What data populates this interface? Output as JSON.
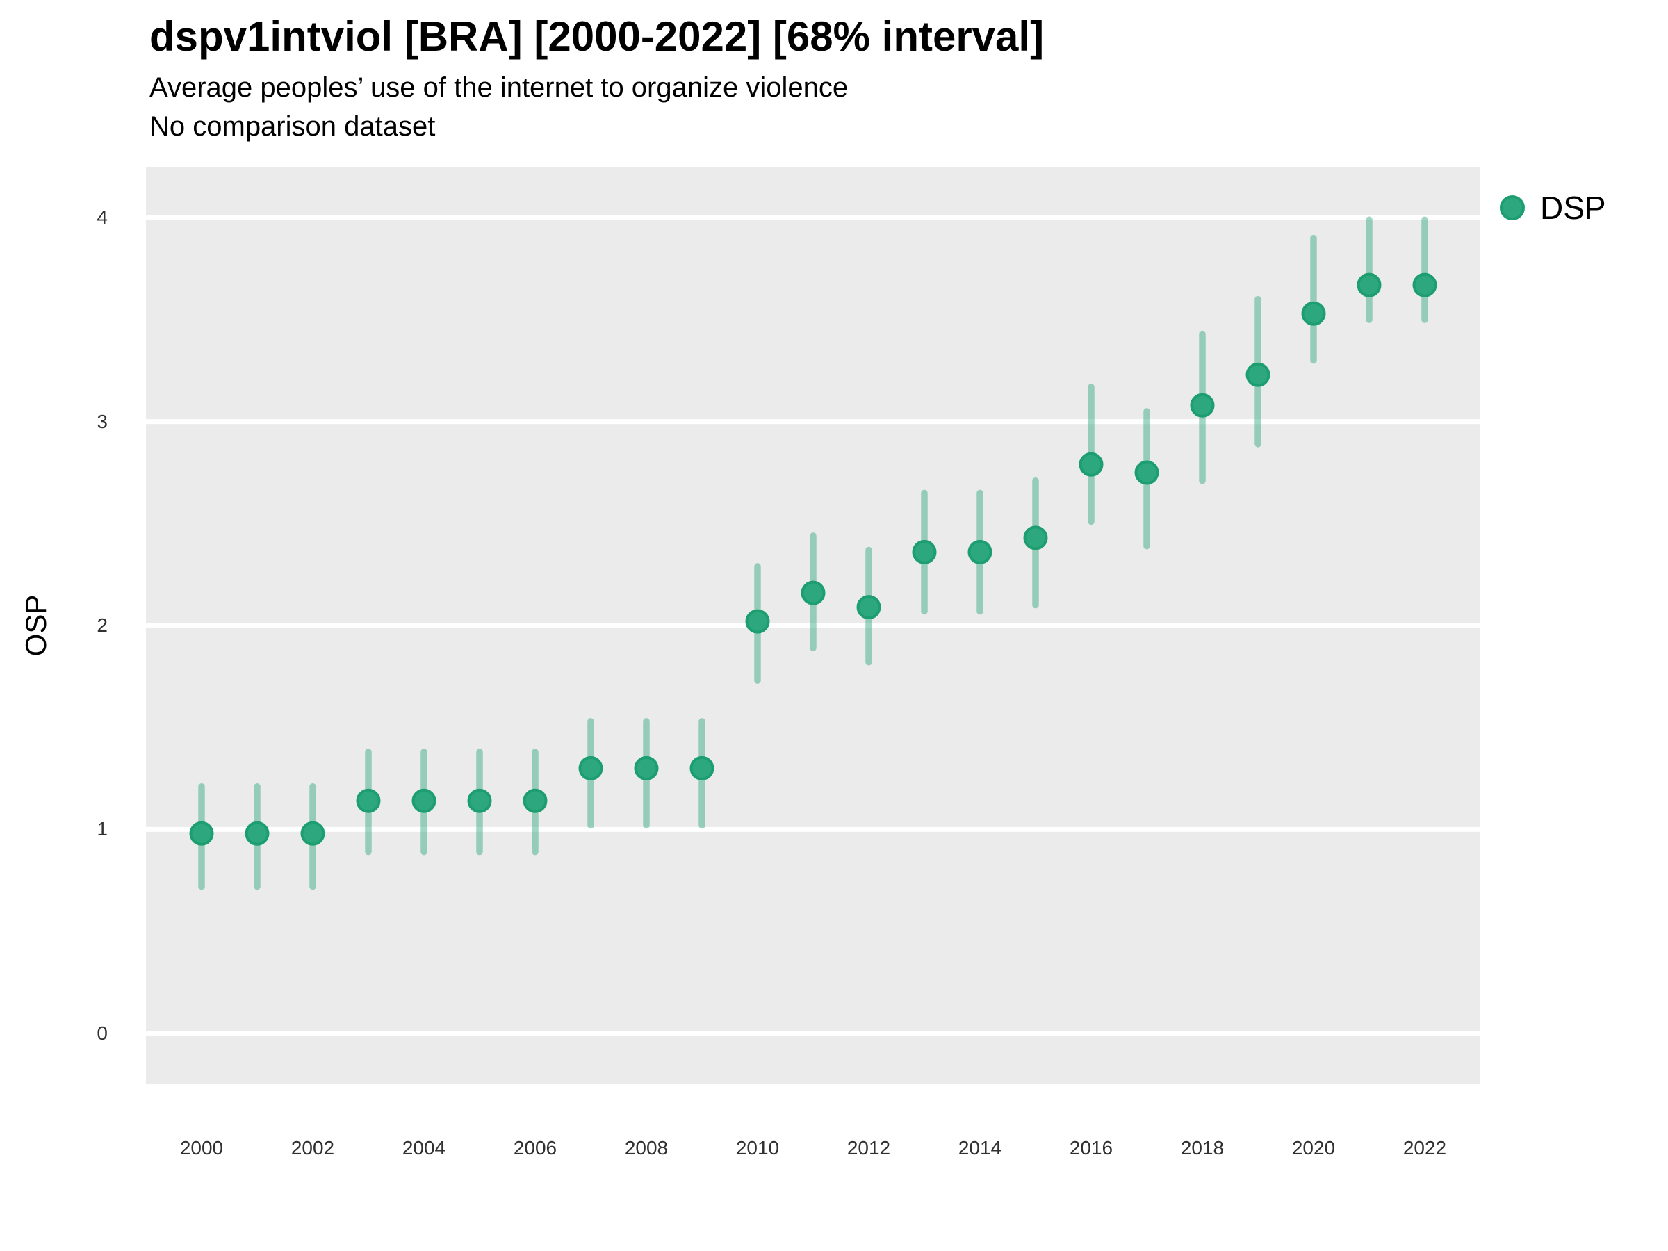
{
  "chart_data": {
    "type": "pointrange",
    "title": "dspv1intviol [BRA] [2000-2022] [68% interval]",
    "subtitle": "Average peoples’ use of the internet to organize violence",
    "note": "No comparison dataset",
    "ylabel": "OSP",
    "xlabel": "",
    "legend": {
      "position": "right-top",
      "entries": [
        {
          "label": "DSP",
          "color": "#2DA87E"
        }
      ]
    },
    "xticks": [
      2000,
      2002,
      2004,
      2006,
      2008,
      2010,
      2012,
      2014,
      2016,
      2018,
      2020,
      2022
    ],
    "yticks": [
      0,
      1,
      2,
      3,
      4
    ],
    "xlim": [
      1999,
      2023
    ],
    "ylim": [
      -0.25,
      4.25
    ],
    "grid": "major-horizontal",
    "colors": {
      "panel_bg": "#EBEBEB",
      "grid": "#FFFFFF",
      "point_fill": "#2DA87E",
      "point_stroke": "#1D9E70",
      "interval": "rgba(44,167,125,0.45)",
      "title_text": "#000000",
      "tick_text": "#303030"
    },
    "series": [
      {
        "name": "DSP",
        "x": [
          2000,
          2001,
          2002,
          2003,
          2004,
          2005,
          2006,
          2007,
          2008,
          2009,
          2010,
          2011,
          2012,
          2013,
          2014,
          2015,
          2016,
          2017,
          2018,
          2019,
          2020,
          2021,
          2022
        ],
        "y": [
          0.98,
          0.98,
          0.98,
          1.14,
          1.14,
          1.14,
          1.14,
          1.3,
          1.3,
          1.3,
          2.02,
          2.16,
          2.09,
          2.36,
          2.36,
          2.43,
          2.79,
          2.75,
          3.08,
          3.23,
          3.53,
          3.67,
          3.67
        ],
        "lo": [
          0.72,
          0.72,
          0.72,
          0.89,
          0.89,
          0.89,
          0.89,
          1.02,
          1.02,
          1.02,
          1.73,
          1.89,
          1.82,
          2.07,
          2.07,
          2.1,
          2.51,
          2.39,
          2.71,
          2.89,
          3.3,
          3.5,
          3.5
        ],
        "hi": [
          1.21,
          1.21,
          1.21,
          1.38,
          1.38,
          1.38,
          1.38,
          1.53,
          1.53,
          1.53,
          2.29,
          2.44,
          2.37,
          2.65,
          2.65,
          2.71,
          3.17,
          3.05,
          3.43,
          3.6,
          3.9,
          3.99,
          3.99
        ]
      }
    ]
  }
}
